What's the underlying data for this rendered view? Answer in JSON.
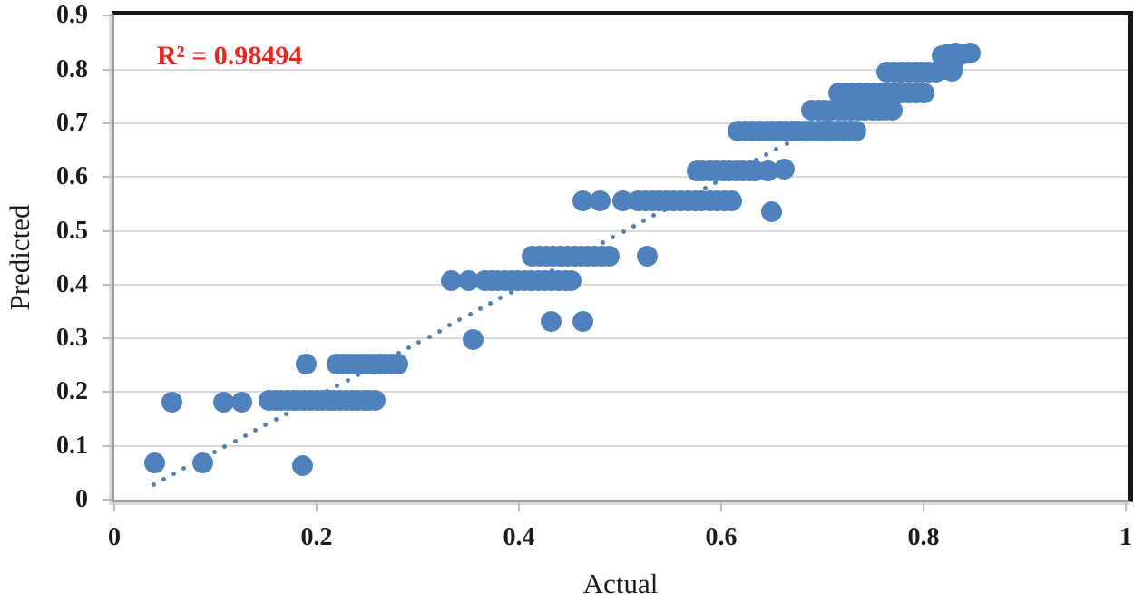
{
  "chart_data": {
    "type": "scatter",
    "title": "",
    "xlabel": "Actual",
    "ylabel": "Predicted",
    "annotation": "R² = 0.98494",
    "annotation_color": "#e8281e",
    "marker_color": "#4f81bd",
    "grid_color": "#d9d9d9",
    "axis_text_color": "#1b1b1b",
    "xlim": [
      0,
      1
    ],
    "ylim": [
      0,
      0.9
    ],
    "grid": "horizontal",
    "legend": "none",
    "x_tick_labels": [
      "0",
      "0.2",
      "0.4",
      "0.6",
      "0.8",
      "1"
    ],
    "x_tick_values": [
      0,
      0.2,
      0.4,
      0.6,
      0.8,
      1
    ],
    "y_tick_labels": [
      "0",
      "0.1",
      "0.2",
      "0.3",
      "0.4",
      "0.5",
      "0.6",
      "0.7",
      "0.8",
      "0.9"
    ],
    "y_tick_values": [
      0,
      0.1,
      0.2,
      0.3,
      0.4,
      0.5,
      0.6,
      0.7,
      0.8,
      0.9
    ],
    "gridlines_y": [
      0.1,
      0.2,
      0.3,
      0.4,
      0.5,
      0.6,
      0.7,
      0.8
    ],
    "trendline": {
      "style": "dotted",
      "slope": 1.013,
      "intercept": -0.012,
      "x_start": 0.0386,
      "x_end": 0.848,
      "step": 0.0101
    },
    "points": [
      [
        0.04,
        0.068
      ],
      [
        0.087,
        0.068
      ],
      [
        0.186,
        0.064
      ],
      [
        0.057,
        0.182
      ],
      [
        0.108,
        0.181
      ],
      [
        0.126,
        0.182
      ],
      [
        0.153,
        0.185
      ],
      [
        0.159,
        0.185
      ],
      [
        0.165,
        0.185
      ],
      [
        0.171,
        0.185
      ],
      [
        0.177,
        0.185
      ],
      [
        0.182,
        0.185
      ],
      [
        0.188,
        0.185
      ],
      [
        0.194,
        0.185
      ],
      [
        0.2,
        0.185
      ],
      [
        0.206,
        0.185
      ],
      [
        0.212,
        0.185
      ],
      [
        0.217,
        0.185
      ],
      [
        0.223,
        0.185
      ],
      [
        0.229,
        0.185
      ],
      [
        0.235,
        0.185
      ],
      [
        0.241,
        0.185
      ],
      [
        0.247,
        0.185
      ],
      [
        0.252,
        0.185
      ],
      [
        0.258,
        0.185
      ],
      [
        0.19,
        0.252
      ],
      [
        0.22,
        0.252
      ],
      [
        0.226,
        0.252
      ],
      [
        0.232,
        0.252
      ],
      [
        0.238,
        0.252
      ],
      [
        0.244,
        0.252
      ],
      [
        0.25,
        0.252
      ],
      [
        0.256,
        0.252
      ],
      [
        0.262,
        0.252
      ],
      [
        0.268,
        0.252
      ],
      [
        0.274,
        0.252
      ],
      [
        0.28,
        0.252
      ],
      [
        0.355,
        0.297
      ],
      [
        0.432,
        0.332
      ],
      [
        0.463,
        0.332
      ],
      [
        0.333,
        0.407
      ],
      [
        0.35,
        0.407
      ],
      [
        0.366,
        0.407
      ],
      [
        0.373,
        0.407
      ],
      [
        0.379,
        0.407
      ],
      [
        0.386,
        0.407
      ],
      [
        0.392,
        0.407
      ],
      [
        0.399,
        0.407
      ],
      [
        0.406,
        0.407
      ],
      [
        0.412,
        0.407
      ],
      [
        0.419,
        0.407
      ],
      [
        0.426,
        0.407
      ],
      [
        0.432,
        0.407
      ],
      [
        0.439,
        0.407
      ],
      [
        0.446,
        0.407
      ],
      [
        0.452,
        0.407
      ],
      [
        0.413,
        0.453
      ],
      [
        0.42,
        0.453
      ],
      [
        0.427,
        0.453
      ],
      [
        0.434,
        0.453
      ],
      [
        0.441,
        0.453
      ],
      [
        0.448,
        0.453
      ],
      [
        0.455,
        0.453
      ],
      [
        0.461,
        0.453
      ],
      [
        0.468,
        0.453
      ],
      [
        0.475,
        0.453
      ],
      [
        0.482,
        0.453
      ],
      [
        0.489,
        0.453
      ],
      [
        0.527,
        0.452
      ],
      [
        0.65,
        0.536
      ],
      [
        0.463,
        0.556
      ],
      [
        0.48,
        0.556
      ],
      [
        0.503,
        0.556
      ],
      [
        0.518,
        0.556
      ],
      [
        0.525,
        0.556
      ],
      [
        0.532,
        0.556
      ],
      [
        0.539,
        0.556
      ],
      [
        0.546,
        0.556
      ],
      [
        0.553,
        0.556
      ],
      [
        0.56,
        0.556
      ],
      [
        0.567,
        0.556
      ],
      [
        0.574,
        0.556
      ],
      [
        0.581,
        0.556
      ],
      [
        0.589,
        0.556
      ],
      [
        0.596,
        0.556
      ],
      [
        0.603,
        0.556
      ],
      [
        0.61,
        0.556
      ],
      [
        0.576,
        0.612
      ],
      [
        0.582,
        0.612
      ],
      [
        0.589,
        0.612
      ],
      [
        0.595,
        0.612
      ],
      [
        0.602,
        0.612
      ],
      [
        0.608,
        0.612
      ],
      [
        0.615,
        0.612
      ],
      [
        0.621,
        0.612
      ],
      [
        0.628,
        0.612
      ],
      [
        0.634,
        0.612
      ],
      [
        0.646,
        0.612
      ],
      [
        0.662,
        0.614
      ],
      [
        0.617,
        0.686
      ],
      [
        0.624,
        0.686
      ],
      [
        0.631,
        0.686
      ],
      [
        0.638,
        0.686
      ],
      [
        0.645,
        0.686
      ],
      [
        0.651,
        0.686
      ],
      [
        0.658,
        0.686
      ],
      [
        0.663,
        0.686
      ],
      [
        0.67,
        0.686
      ],
      [
        0.676,
        0.686
      ],
      [
        0.683,
        0.686
      ],
      [
        0.689,
        0.686
      ],
      [
        0.696,
        0.686
      ],
      [
        0.702,
        0.686
      ],
      [
        0.708,
        0.686
      ],
      [
        0.715,
        0.686
      ],
      [
        0.721,
        0.686
      ],
      [
        0.727,
        0.686
      ],
      [
        0.733,
        0.686
      ],
      [
        0.689,
        0.724
      ],
      [
        0.696,
        0.724
      ],
      [
        0.702,
        0.724
      ],
      [
        0.709,
        0.724
      ],
      [
        0.716,
        0.724
      ],
      [
        0.722,
        0.724
      ],
      [
        0.729,
        0.724
      ],
      [
        0.736,
        0.724
      ],
      [
        0.742,
        0.724
      ],
      [
        0.749,
        0.724
      ],
      [
        0.756,
        0.724
      ],
      [
        0.762,
        0.724
      ],
      [
        0.769,
        0.724
      ],
      [
        0.716,
        0.757
      ],
      [
        0.723,
        0.757
      ],
      [
        0.73,
        0.757
      ],
      [
        0.737,
        0.757
      ],
      [
        0.744,
        0.757
      ],
      [
        0.751,
        0.757
      ],
      [
        0.758,
        0.757
      ],
      [
        0.765,
        0.757
      ],
      [
        0.772,
        0.757
      ],
      [
        0.779,
        0.757
      ],
      [
        0.786,
        0.757
      ],
      [
        0.793,
        0.757
      ],
      [
        0.8,
        0.757
      ],
      [
        0.764,
        0.795
      ],
      [
        0.771,
        0.795
      ],
      [
        0.778,
        0.795
      ],
      [
        0.785,
        0.795
      ],
      [
        0.792,
        0.795
      ],
      [
        0.798,
        0.795
      ],
      [
        0.805,
        0.795
      ],
      [
        0.812,
        0.795
      ],
      [
        0.82,
        0.801
      ],
      [
        0.828,
        0.797
      ],
      [
        0.821,
        0.81
      ],
      [
        0.829,
        0.808
      ],
      [
        0.818,
        0.826
      ],
      [
        0.825,
        0.828
      ],
      [
        0.832,
        0.83
      ],
      [
        0.839,
        0.828
      ],
      [
        0.846,
        0.831
      ]
    ]
  },
  "geometry_note": "x axis 0-1, y axis 0-0.9, horizontal gridlines only"
}
